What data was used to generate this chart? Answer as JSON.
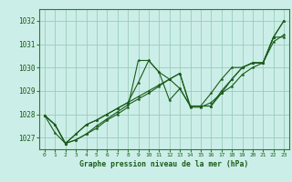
{
  "title": "Graphe pression niveau de la mer (hPa)",
  "bg_color": "#cceee8",
  "grid_color": "#99ccbb",
  "line_color": "#1a5c1a",
  "spine_color": "#2d7a2d",
  "xlim": [
    -0.5,
    23.5
  ],
  "ylim": [
    1026.5,
    1032.5
  ],
  "yticks": [
    1027,
    1028,
    1029,
    1030,
    1031,
    1032
  ],
  "xticks": [
    0,
    1,
    2,
    3,
    4,
    5,
    6,
    7,
    8,
    9,
    10,
    11,
    12,
    13,
    14,
    15,
    16,
    17,
    18,
    19,
    20,
    21,
    22,
    23
  ],
  "series": [
    [
      1027.95,
      1027.55,
      1026.75,
      1026.9,
      1027.15,
      1027.4,
      1027.75,
      1028.0,
      1028.3,
      1030.3,
      1030.3,
      1029.8,
      1028.6,
      1029.1,
      1028.35,
      1028.35,
      1028.35,
      1028.9,
      1029.5,
      1030.0,
      1030.2,
      1030.2,
      1031.3,
      1032.0
    ],
    [
      1027.95,
      1027.55,
      1026.75,
      1027.15,
      1027.55,
      1027.75,
      1028.0,
      1028.25,
      1028.5,
      1028.75,
      1029.0,
      1029.25,
      1029.5,
      1029.75,
      1028.35,
      1028.35,
      1028.35,
      1029.0,
      1029.5,
      1030.0,
      1030.2,
      1030.2,
      1031.3,
      1031.3
    ],
    [
      1027.95,
      1027.55,
      1026.75,
      1027.15,
      1027.55,
      1027.75,
      1028.0,
      1028.25,
      1028.5,
      1029.35,
      1030.3,
      1029.8,
      1029.5,
      1029.1,
      1028.35,
      1028.35,
      1028.9,
      1029.5,
      1030.0,
      1030.0,
      1030.2,
      1030.2,
      1031.3,
      1032.0
    ],
    [
      1027.95,
      1027.2,
      1026.75,
      1026.9,
      1027.15,
      1027.5,
      1027.8,
      1028.1,
      1028.4,
      1028.65,
      1028.9,
      1029.2,
      1029.5,
      1029.75,
      1028.3,
      1028.3,
      1028.5,
      1028.9,
      1029.2,
      1029.7,
      1030.0,
      1030.2,
      1031.1,
      1031.4
    ]
  ]
}
